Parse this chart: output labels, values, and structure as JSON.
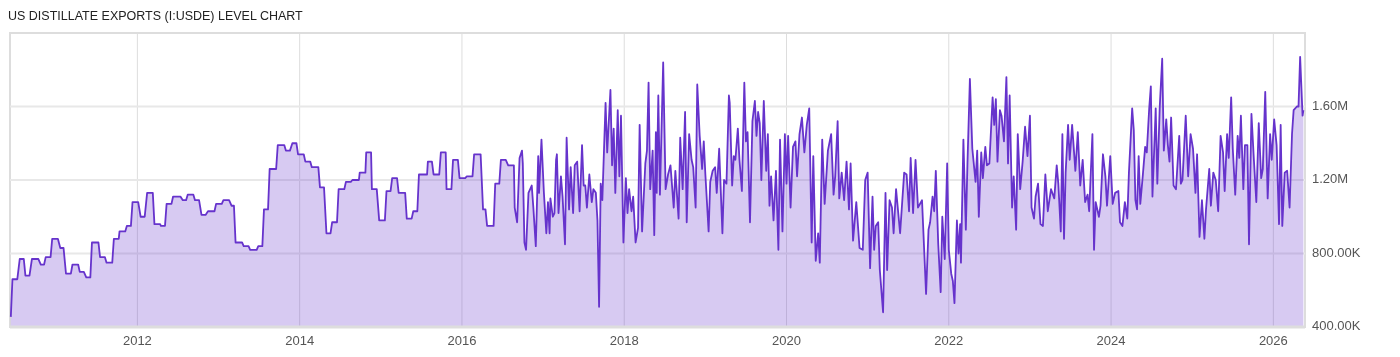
{
  "chart_data": {
    "type": "area",
    "title": "US DISTILLATE EXPORTS (I:USDE) LEVEL CHART",
    "xlim": [
      2010.43,
      2026.39
    ],
    "xticks": [
      2012,
      2014,
      2016,
      2018,
      2020,
      2022,
      2024,
      2026
    ],
    "ylim": [
      400000,
      2000000
    ],
    "yticks": [
      {
        "value": 400000,
        "label": "400.00K"
      },
      {
        "value": 800000,
        "label": "800.00K"
      },
      {
        "value": 1200000,
        "label": "1.20M"
      },
      {
        "value": 1600000,
        "label": "1.60M"
      }
    ],
    "grid": true,
    "series": [
      {
        "color": "#6633cc",
        "x": [
          2010.44,
          2010.46,
          2010.52,
          2010.55,
          2010.6,
          2010.62,
          2010.67,
          2010.7,
          2010.78,
          2010.81,
          2010.85,
          2010.87,
          2010.93,
          2010.95,
          2011.02,
          2011.05,
          2011.09,
          2011.12,
          2011.18,
          2011.2,
          2011.27,
          2011.29,
          2011.34,
          2011.37,
          2011.42,
          2011.44,
          2011.52,
          2011.54,
          2011.6,
          2011.62,
          2011.69,
          2011.71,
          2011.77,
          2011.78,
          2011.85,
          2011.87,
          2011.92,
          2011.94,
          2012.01,
          2012.04,
          2012.09,
          2012.12,
          2012.19,
          2012.21,
          2012.28,
          2012.29,
          2012.34,
          2012.36,
          2012.42,
          2012.44,
          2012.53,
          2012.56,
          2012.6,
          2012.62,
          2012.69,
          2012.71,
          2012.76,
          2012.79,
          2012.84,
          2012.87,
          2012.95,
          2012.97,
          2013.04,
          2013.06,
          2013.13,
          2013.16,
          2013.19,
          2013.21,
          2013.29,
          2013.31,
          2013.37,
          2013.39,
          2013.47,
          2013.49,
          2013.54,
          2013.56,
          2013.61,
          2013.63,
          2013.71,
          2013.73,
          2013.81,
          2013.83,
          2013.88,
          2013.91,
          2013.96,
          2013.98,
          2014.05,
          2014.07,
          2014.13,
          2014.15,
          2014.23,
          2014.25,
          2014.3,
          2014.33,
          2014.38,
          2014.4,
          2014.46,
          2014.48,
          2014.55,
          2014.57,
          2014.63,
          2014.65,
          2014.73,
          2014.74,
          2014.81,
          2014.82,
          2014.88,
          2014.89,
          2014.95,
          2014.98,
          2015.05,
          2015.07,
          2015.12,
          2015.14,
          2015.2,
          2015.22,
          2015.3,
          2015.32,
          2015.38,
          2015.4,
          2015.45,
          2015.47,
          2015.57,
          2015.58,
          2015.63,
          2015.65,
          2015.72,
          2015.74,
          2015.8,
          2015.81,
          2015.87,
          2015.89,
          2015.95,
          2015.97,
          2016.04,
          2016.06,
          2016.13,
          2016.15,
          2016.23,
          2016.26,
          2016.29,
          2016.31,
          2016.39,
          2016.41,
          2016.46,
          2016.48,
          2016.54,
          2016.57,
          2016.64,
          2016.65,
          2016.68,
          2016.71,
          2016.74,
          2016.75,
          2016.77,
          2016.79,
          2016.82,
          2016.86,
          2016.88,
          2016.91,
          2016.94,
          2016.95,
          2016.98,
          2017.01,
          2017.04,
          2017.06,
          2017.08,
          2017.09,
          2017.12,
          2017.14,
          2017.16,
          2017.17,
          2017.19,
          2017.22,
          2017.24,
          2017.27,
          2017.29,
          2017.32,
          2017.34,
          2017.37,
          2017.39,
          2017.42,
          2017.45,
          2017.48,
          2017.5,
          2017.52,
          2017.54,
          2017.57,
          2017.6,
          2017.62,
          2017.65,
          2017.67,
          2017.69,
          2017.71,
          2017.73,
          2017.77,
          2017.79,
          2017.83,
          2017.85,
          2017.87,
          2017.89,
          2017.92,
          2017.94,
          2017.96,
          2017.99,
          2018.02,
          2018.04,
          2018.06,
          2018.09,
          2018.11,
          2018.14,
          2018.17,
          2018.19,
          2018.22,
          2018.26,
          2018.28,
          2018.3,
          2018.32,
          2018.35,
          2018.37,
          2018.39,
          2018.4,
          2018.42,
          2018.44,
          2018.48,
          2018.51,
          2018.54,
          2018.57,
          2018.61,
          2018.63,
          2018.67,
          2018.69,
          2018.72,
          2018.75,
          2018.77,
          2018.8,
          2018.83,
          2018.85,
          2018.88,
          2018.9,
          2018.93,
          2018.96,
          2018.98,
          2019.0,
          2019.04,
          2019.06,
          2019.09,
          2019.12,
          2019.14,
          2019.17,
          2019.21,
          2019.23,
          2019.26,
          2019.29,
          2019.3,
          2019.33,
          2019.35,
          2019.37,
          2019.4,
          2019.42,
          2019.45,
          2019.48,
          2019.5,
          2019.52,
          2019.55,
          2019.58,
          2019.61,
          2019.63,
          2019.65,
          2019.67,
          2019.69,
          2019.72,
          2019.75,
          2019.77,
          2019.79,
          2019.81,
          2019.84,
          2019.87,
          2019.9,
          2019.92,
          2019.95,
          2019.98,
          2020.0,
          2020.02,
          2020.05,
          2020.08,
          2020.11,
          2020.13,
          2020.16,
          2020.19,
          2020.22,
          2020.25,
          2020.28,
          2020.31,
          2020.33,
          2020.36,
          2020.39,
          2020.41,
          2020.44,
          2020.47,
          2020.51,
          2020.55,
          2020.58,
          2020.6,
          2020.63,
          2020.65,
          2020.68,
          2020.71,
          2020.74,
          2020.77,
          2020.79,
          2020.82,
          2020.86,
          2020.9,
          2020.94,
          2020.97,
          2021.0,
          2021.03,
          2021.06,
          2021.08,
          2021.1,
          2021.13,
          2021.15,
          2021.19,
          2021.22,
          2021.24,
          2021.27,
          2021.3,
          2021.32,
          2021.35,
          2021.4,
          2021.45,
          2021.48,
          2021.51,
          2021.53,
          2021.56,
          2021.59,
          2021.62,
          2021.67,
          2021.72,
          2021.75,
          2021.77,
          2021.8,
          2021.82,
          2021.84,
          2021.87,
          2021.9,
          2021.92,
          2021.95,
          2021.98,
          2022.0,
          2022.03,
          2022.05,
          2022.07,
          2022.1,
          2022.12,
          2022.14,
          2022.15,
          2022.18,
          2022.21,
          2022.23,
          2022.26,
          2022.29,
          2022.33,
          2022.35,
          2022.37,
          2022.4,
          2022.42,
          2022.45,
          2022.47,
          2022.5,
          2022.54,
          2022.56,
          2022.58,
          2022.6,
          2022.63,
          2022.65,
          2022.68,
          2022.71,
          2022.73,
          2022.75,
          2022.78,
          2022.8,
          2022.83,
          2022.85,
          2022.88,
          2022.91,
          2022.94,
          2022.97,
          2023.0,
          2023.02,
          2023.05,
          2023.07,
          2023.1,
          2023.13,
          2023.16,
          2023.19,
          2023.22,
          2023.26,
          2023.3,
          2023.33,
          2023.35,
          2023.38,
          2023.4,
          2023.42,
          2023.44,
          2023.47,
          2023.49,
          2023.52,
          2023.56,
          2023.59,
          2023.62,
          2023.65,
          2023.68,
          2023.71,
          2023.73,
          2023.77,
          2023.79,
          2023.81,
          2023.85,
          2023.87,
          2023.9,
          2023.93,
          2023.95,
          2023.99,
          2024.02,
          2024.05,
          2024.09,
          2024.11,
          2024.14,
          2024.17,
          2024.2,
          2024.22,
          2024.26,
          2024.28,
          2024.3,
          2024.32,
          2024.34,
          2024.36,
          2024.39,
          2024.42,
          2024.44,
          2024.47,
          2024.49,
          2024.51,
          2024.55,
          2024.57,
          2024.6,
          2024.63,
          2024.65,
          2024.68,
          2024.7,
          2024.72,
          2024.74,
          2024.77,
          2024.8,
          2024.84,
          2024.86,
          2024.88,
          2024.92,
          2024.95,
          2024.98,
          2025.01,
          2025.04,
          2025.06,
          2025.09,
          2025.12,
          2025.15,
          2025.17,
          2025.21,
          2025.23,
          2025.26,
          2025.29,
          2025.32,
          2025.35,
          2025.38,
          2025.4,
          2025.43,
          2025.45,
          2025.48,
          2025.5,
          2025.53,
          2025.56,
          2025.58,
          2025.6,
          2025.63,
          2025.65,
          2025.68,
          2025.7,
          2025.73,
          2025.76,
          2025.79,
          2025.82,
          2025.85,
          2025.87,
          2025.9,
          2025.93,
          2025.96,
          2025.98,
          2026.01,
          2026.04,
          2026.07,
          2026.09,
          2026.11,
          2026.14,
          2026.17,
          2026.2,
          2026.23,
          2026.25,
          2026.29,
          2026.31,
          2026.33,
          2026.36,
          2026.37
        ],
        "values": [
          455000,
          660000,
          660000,
          770000,
          770000,
          680000,
          680000,
          770000,
          770000,
          740000,
          740000,
          780000,
          780000,
          880000,
          880000,
          830000,
          830000,
          690000,
          690000,
          740000,
          740000,
          700000,
          700000,
          670000,
          670000,
          860000,
          860000,
          780000,
          780000,
          750000,
          750000,
          880000,
          880000,
          920000,
          920000,
          950000,
          950000,
          1080000,
          1080000,
          1000000,
          1000000,
          1130000,
          1130000,
          960000,
          960000,
          950000,
          950000,
          1070000,
          1070000,
          1110000,
          1110000,
          1090000,
          1090000,
          1120000,
          1120000,
          1090000,
          1090000,
          1010000,
          1010000,
          1030000,
          1030000,
          1070000,
          1070000,
          1090000,
          1090000,
          1060000,
          1060000,
          860000,
          860000,
          840000,
          840000,
          820000,
          820000,
          840000,
          840000,
          1040000,
          1040000,
          1260000,
          1260000,
          1390000,
          1390000,
          1360000,
          1360000,
          1400000,
          1400000,
          1340000,
          1340000,
          1300000,
          1300000,
          1270000,
          1270000,
          1160000,
          1160000,
          910000,
          910000,
          970000,
          970000,
          1150000,
          1150000,
          1190000,
          1190000,
          1200000,
          1200000,
          1240000,
          1240000,
          1350000,
          1350000,
          1150000,
          1150000,
          980000,
          980000,
          1140000,
          1140000,
          1210000,
          1210000,
          1130000,
          1130000,
          990000,
          990000,
          1030000,
          1030000,
          1230000,
          1230000,
          1300000,
          1300000,
          1230000,
          1230000,
          1350000,
          1350000,
          1150000,
          1150000,
          1310000,
          1310000,
          1210000,
          1210000,
          1220000,
          1220000,
          1340000,
          1340000,
          1040000,
          1040000,
          950000,
          950000,
          1180000,
          1180000,
          1310000,
          1310000,
          1280000,
          1280000,
          1050000,
          970000,
          1320000,
          1360000,
          1290000,
          860000,
          820000,
          1130000,
          1170000,
          1050000,
          840000,
          1330000,
          1130000,
          1420000,
          1130000,
          910000,
          1080000,
          910000,
          1100000,
          1000000,
          1020000,
          1310000,
          1340000,
          1020000,
          1220000,
          1110000,
          850000,
          1430000,
          1040000,
          1270000,
          1020000,
          1280000,
          1300000,
          1030000,
          1390000,
          1170000,
          1170000,
          1050000,
          1230000,
          1080000,
          1150000,
          1130000,
          980000,
          510000,
          1180000,
          1090000,
          1620000,
          1350000,
          1690000,
          1280000,
          1480000,
          1130000,
          1580000,
          1220000,
          1550000,
          860000,
          1210000,
          1020000,
          1150000,
          1030000,
          1110000,
          860000,
          940000,
          1500000,
          920000,
          1290000,
          1360000,
          1730000,
          1150000,
          1360000,
          900000,
          1460000,
          1130000,
          1660000,
          1120000,
          1840000,
          1150000,
          1230000,
          1280000,
          1050000,
          1250000,
          990000,
          1430000,
          1150000,
          1570000,
          970000,
          1450000,
          1310000,
          1270000,
          1050000,
          1720000,
          1440000,
          1260000,
          1410000,
          1230000,
          920000,
          1190000,
          1250000,
          1270000,
          1130000,
          1370000,
          910000,
          1200000,
          1180000,
          1660000,
          1620000,
          1170000,
          1330000,
          1310000,
          1480000,
          1310000,
          1140000,
          1730000,
          1410000,
          1460000,
          970000,
          1520000,
          1630000,
          1440000,
          1570000,
          1510000,
          1200000,
          1630000,
          1250000,
          1450000,
          1060000,
          1220000,
          980000,
          1250000,
          820000,
          1420000,
          920000,
          1450000,
          1180000,
          1440000,
          1050000,
          1380000,
          1410000,
          1220000,
          1450000,
          1540000,
          1350000,
          1500000,
          1590000,
          860000,
          1330000,
          760000,
          910000,
          750000,
          1420000,
          1070000,
          1360000,
          1450000,
          1120000,
          1220000,
          1520000,
          1100000,
          1240000,
          1090000,
          1300000,
          1040000,
          1290000,
          870000,
          1080000,
          830000,
          820000,
          1200000,
          1240000,
          720000,
          1110000,
          820000,
          950000,
          970000,
          710000,
          480000,
          1130000,
          710000,
          1090000,
          1050000,
          910000,
          1150000,
          910000,
          1240000,
          1230000,
          1030000,
          1320000,
          1020000,
          1310000,
          1050000,
          1090000,
          580000,
          930000,
          970000,
          1110000,
          1030000,
          1250000,
          850000,
          590000,
          1000000,
          770000,
          1290000,
          820000,
          690000,
          650000,
          530000,
          980000,
          800000,
          960000,
          750000,
          1420000,
          930000,
          1290000,
          1750000,
          1370000,
          1190000,
          1360000,
          1000000,
          1350000,
          1210000,
          1380000,
          1280000,
          1290000,
          1650000,
          1500000,
          1640000,
          1300000,
          1580000,
          1550000,
          1410000,
          1760000,
          1290000,
          1660000,
          1050000,
          1220000,
          930000,
          1450000,
          1150000,
          1300000,
          1490000,
          1330000,
          1550000,
          1050000,
          990000,
          1110000,
          1180000,
          960000,
          950000,
          1230000,
          1030000,
          1150000,
          1100000,
          1280000,
          1180000,
          920000,
          1450000,
          880000,
          1240000,
          1500000,
          1310000,
          1500000,
          1250000,
          1460000,
          1170000,
          1310000,
          1080000,
          1120000,
          1030000,
          1450000,
          820000,
          1080000,
          1000000,
          1060000,
          1340000,
          1220000,
          1060000,
          1330000,
          1070000,
          1130000,
          1140000,
          970000,
          950000,
          1080000,
          990000,
          1240000,
          1590000,
          1470000,
          1090000,
          1040000,
          1330000,
          1070000,
          1220000,
          1380000,
          1350000,
          1590000,
          1710000,
          1110000,
          1590000,
          1180000,
          1600000,
          1860000,
          1360000,
          1530000,
          1390000,
          1300000,
          1540000,
          1170000,
          1150000,
          1440000,
          1180000,
          1200000,
          1550000,
          1220000,
          1450000,
          1370000,
          1130000,
          1340000,
          890000,
          1090000,
          880000,
          1040000,
          1260000,
          1060000,
          1240000,
          1200000,
          1030000,
          1440000,
          1350000,
          1140000,
          1450000,
          1320000,
          1650000,
          1370000,
          1120000,
          1440000,
          1320000,
          1550000,
          1150000,
          1390000,
          1390000,
          850000,
          1560000,
          1310000,
          1080000,
          1510000,
          1210000,
          1260000,
          1680000,
          1100000,
          1450000,
          1310000,
          1530000,
          1390000,
          960000,
          1500000,
          950000,
          1240000,
          1250000,
          1050000,
          1450000,
          1580000,
          1600000,
          1600000,
          1870000,
          1550000,
          1580000
        ]
      }
    ]
  }
}
